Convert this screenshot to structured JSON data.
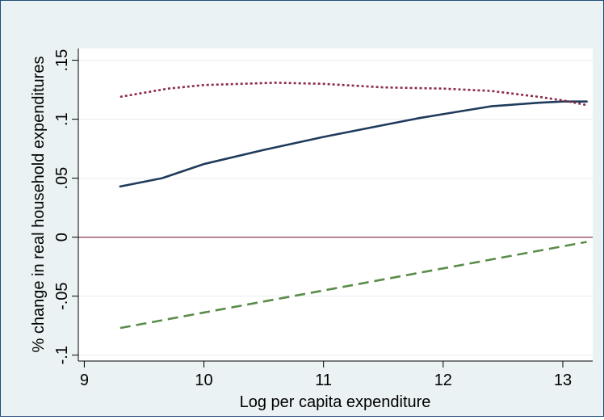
{
  "chart_data": {
    "type": "line",
    "xlabel": "Log per capita expenditure",
    "ylabel": "% change in real household expenditures",
    "xlim": [
      8.95,
      13.25
    ],
    "ylim": [
      -0.105,
      0.16
    ],
    "xticks": [
      9,
      10,
      11,
      12,
      13
    ],
    "xtick_labels": [
      "9",
      "10",
      "11",
      "12",
      "13"
    ],
    "yticks": [
      -0.1,
      -0.05,
      0,
      0.05,
      0.1,
      0.15
    ],
    "ytick_labels": [
      "-.1",
      "-.05",
      "0",
      ".05",
      ".1",
      ".15"
    ],
    "grid": true,
    "legend": "none",
    "reference_line": {
      "y": 0,
      "color": "#8b3a56"
    },
    "series": [
      {
        "style": "solid",
        "color": "#1f3b5c",
        "x": [
          9.3,
          9.65,
          10.0,
          10.5,
          11.0,
          11.5,
          11.8,
          12.1,
          12.4,
          12.8,
          13.0,
          13.2
        ],
        "y": [
          0.043,
          0.05,
          0.062,
          0.074,
          0.085,
          0.095,
          0.101,
          0.106,
          0.111,
          0.114,
          0.115,
          0.115
        ]
      },
      {
        "style": "dotted",
        "color": "#8b2a45",
        "x": [
          9.3,
          9.7,
          10.0,
          10.6,
          11.0,
          11.5,
          12.0,
          12.4,
          12.8,
          13.0,
          13.2
        ],
        "y": [
          0.119,
          0.126,
          0.129,
          0.131,
          0.13,
          0.127,
          0.126,
          0.124,
          0.119,
          0.116,
          0.112
        ]
      },
      {
        "style": "dashed",
        "color": "#5a8c4a",
        "x": [
          9.3,
          13.2
        ],
        "y": [
          -0.077,
          -0.004
        ]
      }
    ]
  }
}
